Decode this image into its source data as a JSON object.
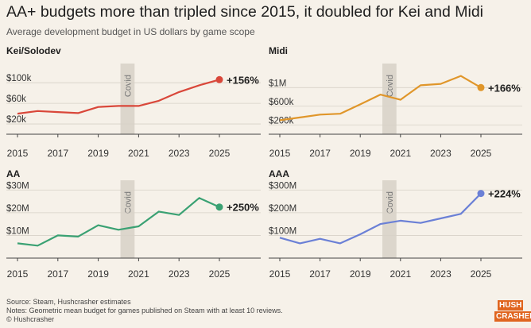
{
  "title": "AA+ budgets more than tripled since 2015, it doubled for Kei and Midi",
  "subtitle": "Average development budget in US dollars by game scope",
  "footer": {
    "source": "Source: Steam, Hushcrasher estimates",
    "notes": "Notes: Geometric mean budget for games published on Steam with at least 10 reviews.",
    "copyright": "© Hushcrasher"
  },
  "logo": {
    "line1": "HUSH",
    "line2": "CRASHER"
  },
  "colors": {
    "background": "#f6f1e9",
    "kei": "#d9473a",
    "midi": "#e0962a",
    "aa": "#3aa173",
    "aaa": "#6b80d6",
    "covid_band": "#dcd6cc",
    "grid": "#d7d1c7",
    "brand": "#e0651f"
  },
  "chart_data": [
    {
      "type": "line",
      "title": "Kei/Solodev",
      "x": [
        2015,
        2016,
        2017,
        2018,
        2019,
        2020,
        2021,
        2022,
        2023,
        2024,
        2025
      ],
      "series": [
        {
          "values": [
            40000,
            45000,
            43000,
            41000,
            53000,
            55000,
            55000,
            65000,
            82000,
            95000,
            106000
          ]
        }
      ],
      "ytick_values": [
        20000,
        60000,
        100000
      ],
      "ytick_labels": [
        "$20k",
        "$60k",
        "$100k"
      ],
      "xticks": [
        2015,
        2017,
        2019,
        2021,
        2023,
        2025
      ],
      "ylim": [
        0,
        125000
      ],
      "xlim": [
        2015,
        2025
      ],
      "annotation": "+156%",
      "band": {
        "label": "Covid",
        "from": 2020.1,
        "to": 2020.8
      },
      "color_key": "kei"
    },
    {
      "type": "line",
      "title": "Midi",
      "x": [
        2015,
        2016,
        2017,
        2018,
        2019,
        2020,
        2021,
        2022,
        2023,
        2024,
        2025
      ],
      "series": [
        {
          "values": [
            300000,
            360000,
            420000,
            440000,
            640000,
            850000,
            740000,
            1050000,
            1080000,
            1250000,
            1000000
          ]
        }
      ],
      "ytick_values": [
        200000,
        600000,
        1000000
      ],
      "ytick_labels": [
        "$200k",
        "$600k",
        "$1M"
      ],
      "xticks": [
        2015,
        2017,
        2019,
        2021,
        2023,
        2025
      ],
      "ylim": [
        0,
        1380000
      ],
      "xlim": [
        2015,
        2025
      ],
      "annotation": "+166%",
      "band": {
        "label": "Covid",
        "from": 2020.1,
        "to": 2020.8
      },
      "color_key": "midi"
    },
    {
      "type": "line",
      "title": "AA",
      "x": [
        2015,
        2016,
        2017,
        2018,
        2019,
        2020,
        2021,
        2022,
        2023,
        2024,
        2025
      ],
      "series": [
        {
          "values": [
            6500000,
            5500000,
            10000000,
            9500000,
            14500000,
            12500000,
            14000000,
            20500000,
            19000000,
            26500000,
            22500000
          ]
        }
      ],
      "ytick_values": [
        10000000,
        20000000,
        30000000
      ],
      "ytick_labels": [
        "$10M",
        "$20M",
        "$30M"
      ],
      "xticks": [
        2015,
        2017,
        2019,
        2021,
        2023,
        2025
      ],
      "ylim": [
        0,
        31500000
      ],
      "xlim": [
        2015,
        2025
      ],
      "annotation": "+250%",
      "band": {
        "label": "Covid",
        "from": 2020.1,
        "to": 2020.8
      },
      "color_key": "aa"
    },
    {
      "type": "line",
      "title": "AAA",
      "x": [
        2015,
        2016,
        2017,
        2018,
        2019,
        2020,
        2021,
        2022,
        2023,
        2024,
        2025
      ],
      "series": [
        {
          "values": [
            90000000,
            65000000,
            85000000,
            65000000,
            105000000,
            150000000,
            165000000,
            155000000,
            175000000,
            195000000,
            285000000
          ]
        }
      ],
      "ytick_values": [
        100000000,
        200000000,
        300000000
      ],
      "ytick_labels": [
        "$100M",
        "$200M",
        "$300M"
      ],
      "xticks": [
        2015,
        2017,
        2019,
        2021,
        2023,
        2025
      ],
      "ylim": [
        0,
        315000000
      ],
      "xlim": [
        2015,
        2025
      ],
      "annotation": "+224%",
      "band": {
        "label": "Covid",
        "from": 2020.1,
        "to": 2020.8
      },
      "color_key": "aaa"
    }
  ]
}
